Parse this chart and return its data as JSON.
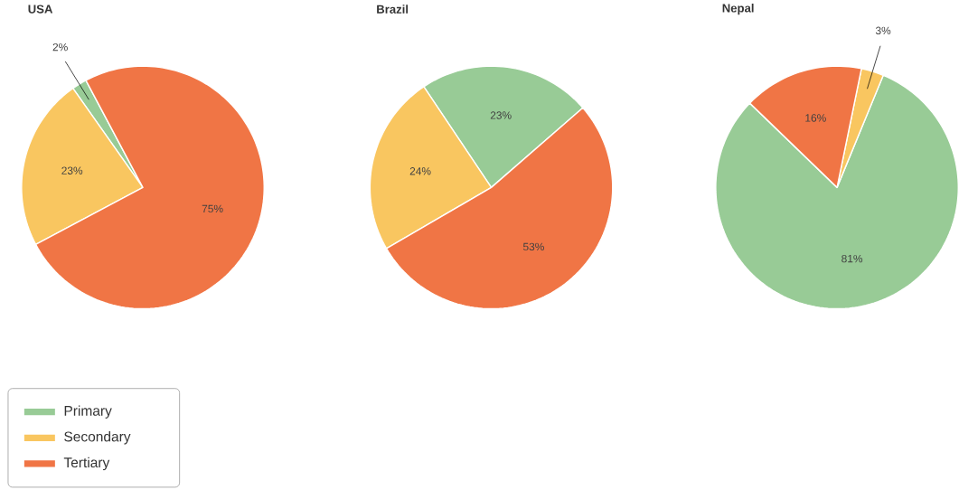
{
  "chart_data": [
    {
      "type": "pie",
      "title": "USA",
      "categories": [
        "Primary",
        "Secondary",
        "Tertiary"
      ],
      "values": [
        2,
        23,
        75
      ],
      "value_labels": [
        "2%",
        "23%",
        "75%"
      ],
      "colors": [
        "#98cb96",
        "#f9c660",
        "#f07545"
      ],
      "legend": "bottom left"
    },
    {
      "type": "pie",
      "title": "Brazil",
      "categories": [
        null,
        null,
        null
      ],
      "values": [
        23,
        24,
        53
      ],
      "value_labels": [
        "23%",
        "24%",
        "53%"
      ],
      "colors": [
        "#98cb96",
        "#f9c660",
        "#f07545"
      ]
    },
    {
      "type": "pie",
      "title": "Nepal",
      "categories": [
        null,
        null,
        null
      ],
      "values": [
        81,
        3,
        16
      ],
      "value_labels": [
        "81%",
        "3%",
        "16%"
      ],
      "colors": [
        "#98cb96",
        "#f9c660",
        "#f07545"
      ]
    }
  ]
}
